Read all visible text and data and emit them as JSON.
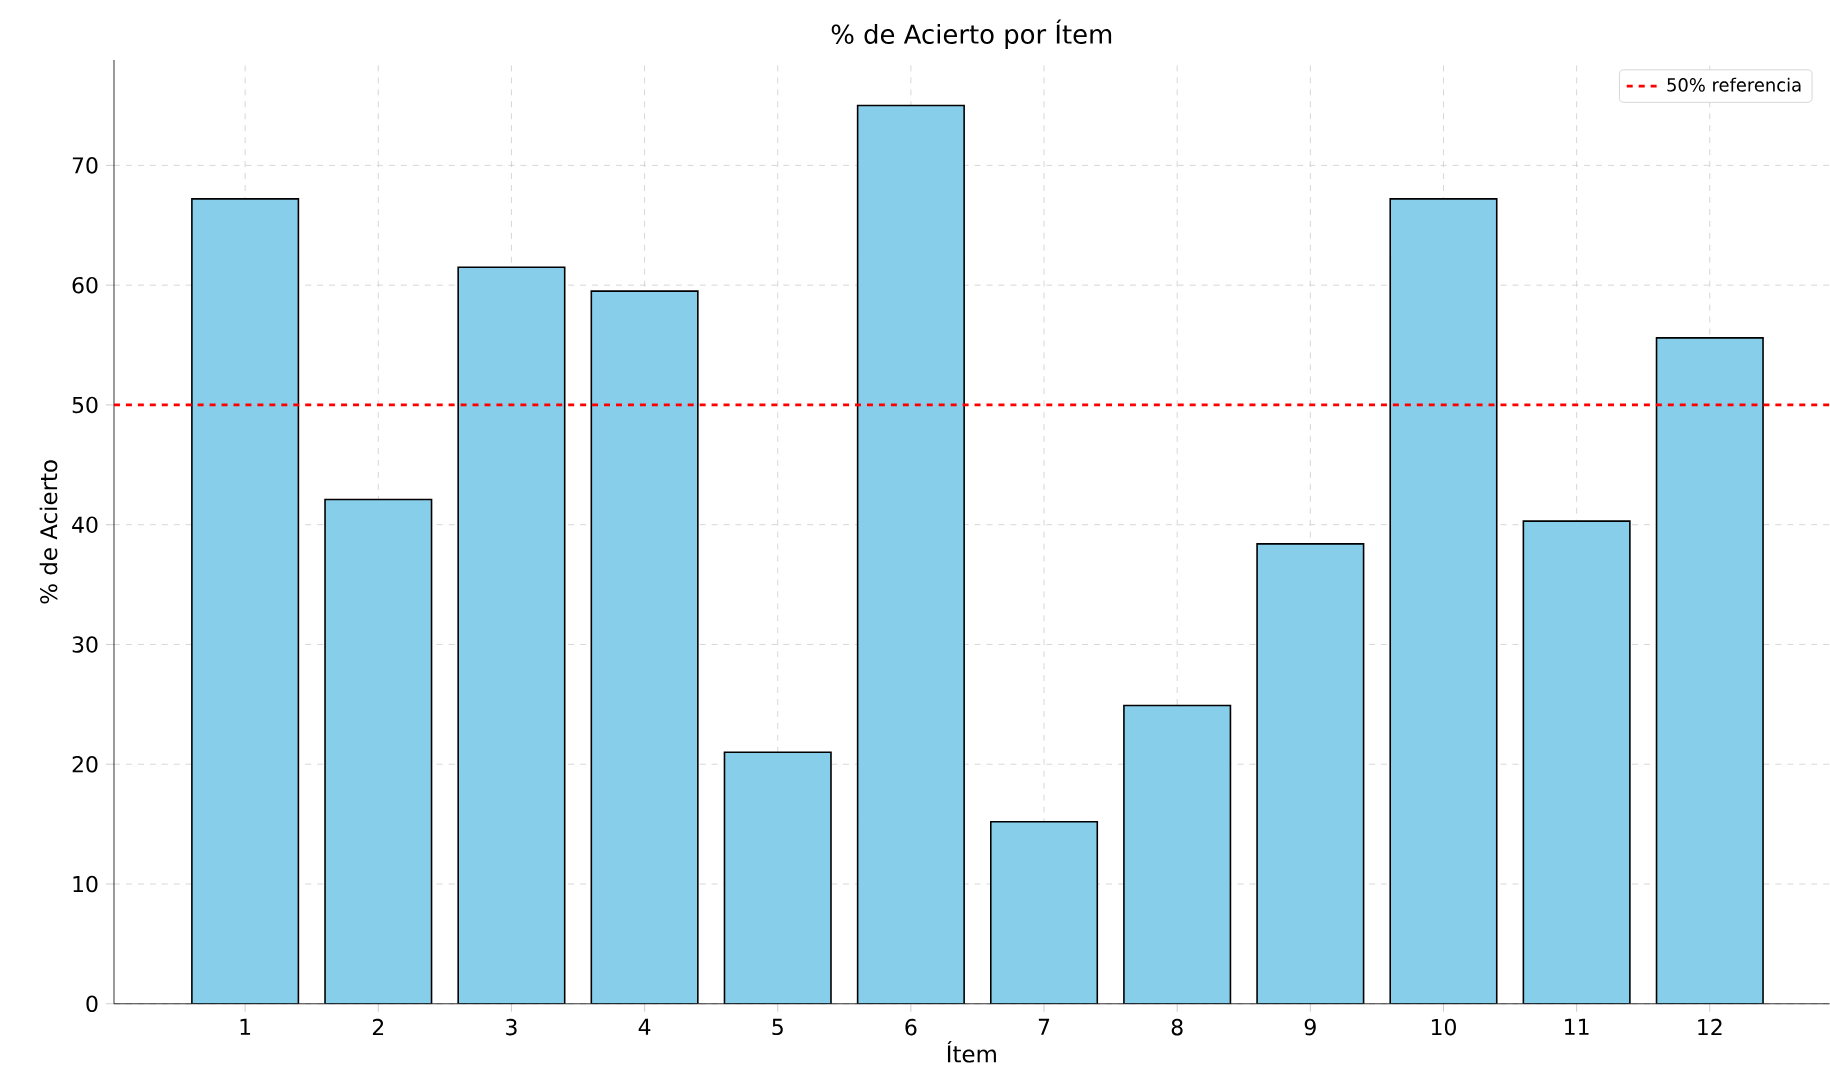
{
  "chart_data": {
    "type": "bar",
    "title": "% de Acierto por Ítem",
    "xlabel": "Ítem",
    "ylabel": "% de Acierto",
    "categories": [
      "1",
      "2",
      "3",
      "4",
      "5",
      "6",
      "7",
      "8",
      "9",
      "10",
      "11",
      "12"
    ],
    "values": [
      67.2,
      42.1,
      61.5,
      59.5,
      21.0,
      75.0,
      15.2,
      24.9,
      38.4,
      67.2,
      40.3,
      55.6
    ],
    "color": "#87ceeb",
    "ylim": [
      0,
      78.8
    ],
    "yticks": [
      0,
      10,
      20,
      30,
      40,
      50,
      60,
      70
    ],
    "grid": true,
    "legend": "top right",
    "ref_lines": [
      {
        "axis": "y",
        "value": 50,
        "label": "50% referencia",
        "color": "#ff0000",
        "line_style": "dashed"
      }
    ]
  }
}
